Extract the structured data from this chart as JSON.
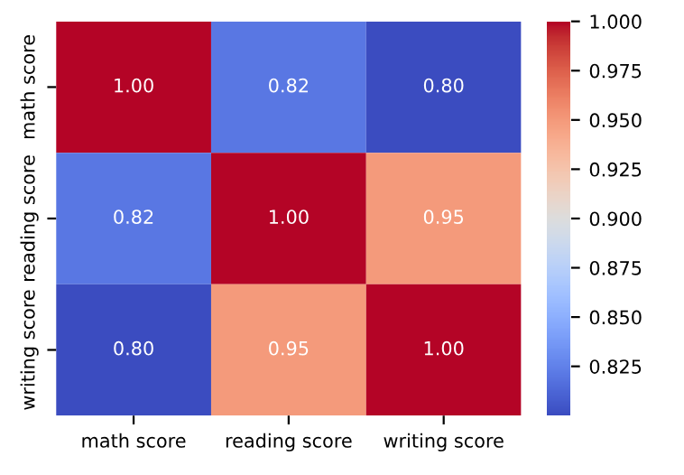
{
  "chart_data": {
    "type": "heatmap",
    "categories": [
      "math score",
      "reading score",
      "writing score"
    ],
    "y_categories": [
      "math score",
      "reading score",
      "writing score"
    ],
    "cells": [
      [
        1.0,
        0.82,
        0.8
      ],
      [
        0.82,
        1.0,
        0.95
      ],
      [
        0.8,
        0.95,
        1.0
      ]
    ],
    "cell_labels": [
      [
        "1.00",
        "0.82",
        "0.80"
      ],
      [
        "0.82",
        "1.00",
        "0.95"
      ],
      [
        "0.80",
        "0.95",
        "1.00"
      ]
    ],
    "clim": [
      0.8,
      1.0
    ],
    "cticks": [
      {
        "value": 0.825,
        "label": "0.825"
      },
      {
        "value": 0.85,
        "label": "0.850"
      },
      {
        "value": 0.875,
        "label": "0.875"
      },
      {
        "value": 0.9,
        "label": "0.900"
      },
      {
        "value": 0.925,
        "label": "0.925"
      },
      {
        "value": 0.95,
        "label": "0.950"
      },
      {
        "value": 0.975,
        "label": "0.975"
      },
      {
        "value": 1.0,
        "label": "1.000"
      }
    ]
  }
}
